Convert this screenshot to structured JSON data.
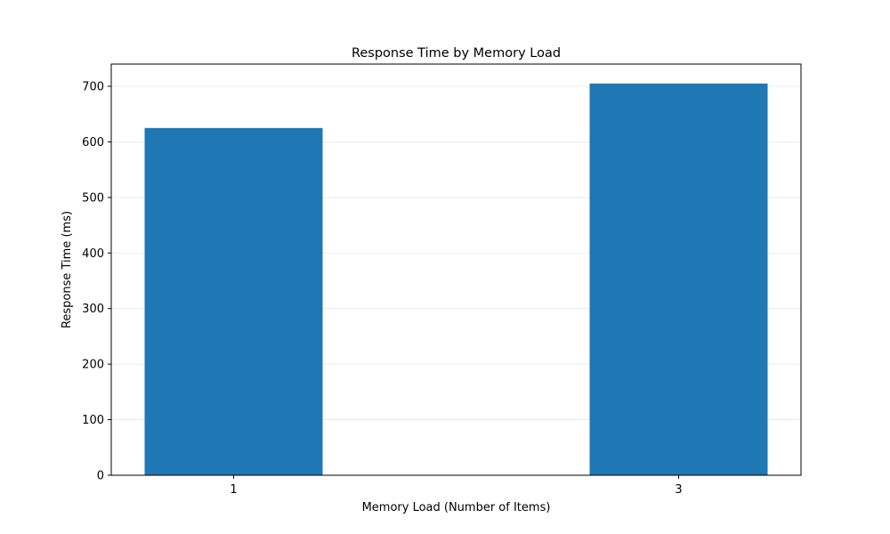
{
  "chart_data": {
    "type": "bar",
    "title": "Response Time by Memory Load",
    "xlabel": "Memory Load (Number of Items)",
    "ylabel": "Response Time (ms)",
    "categories": [
      "1",
      "3"
    ],
    "x": [
      1,
      3
    ],
    "values": [
      625,
      705
    ],
    "xlim": [
      0.45,
      3.55
    ],
    "ylim": [
      0,
      740
    ],
    "yticks": [
      0,
      100,
      200,
      300,
      400,
      500,
      600,
      700
    ],
    "grid": true,
    "bar_color": "#1f77b4"
  }
}
